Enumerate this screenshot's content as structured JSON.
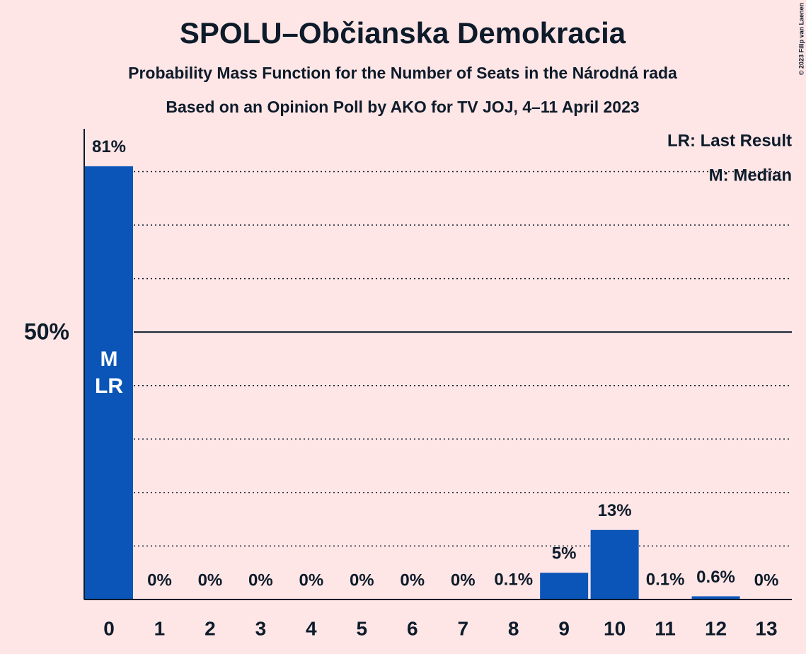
{
  "chart_data": {
    "type": "bar",
    "title": "SPOLU–Občianska Demokracia",
    "subtitle": "Probability Mass Function for the Number of Seats in the Národná rada",
    "subtitle2": "Based on an Opinion Poll by AKO for TV JOJ, 4–11 April 2023",
    "copyright": "© 2023 Filip van Laenen",
    "categories": [
      "0",
      "1",
      "2",
      "3",
      "4",
      "5",
      "6",
      "7",
      "8",
      "9",
      "10",
      "11",
      "12",
      "13"
    ],
    "values": [
      81,
      0,
      0,
      0,
      0,
      0,
      0,
      0,
      0.1,
      5,
      13,
      0.1,
      0.6,
      0
    ],
    "value_labels": [
      "81%",
      "0%",
      "0%",
      "0%",
      "0%",
      "0%",
      "0%",
      "0%",
      "0.1%",
      "5%",
      "13%",
      "0.1%",
      "0.6%",
      "0%"
    ],
    "color": "#0b55b8",
    "ylim": [
      0,
      88
    ],
    "yticks": [
      {
        "value": 50,
        "label": "50%"
      }
    ],
    "grid_lines": [
      10,
      20,
      30,
      40,
      60,
      70,
      80
    ],
    "bar_annotations": [
      {
        "category": 0,
        "lines": [
          "M",
          "LR"
        ]
      }
    ],
    "legend": [
      "LR: Last Result",
      "M: Median"
    ],
    "legend_position": "upper right"
  }
}
